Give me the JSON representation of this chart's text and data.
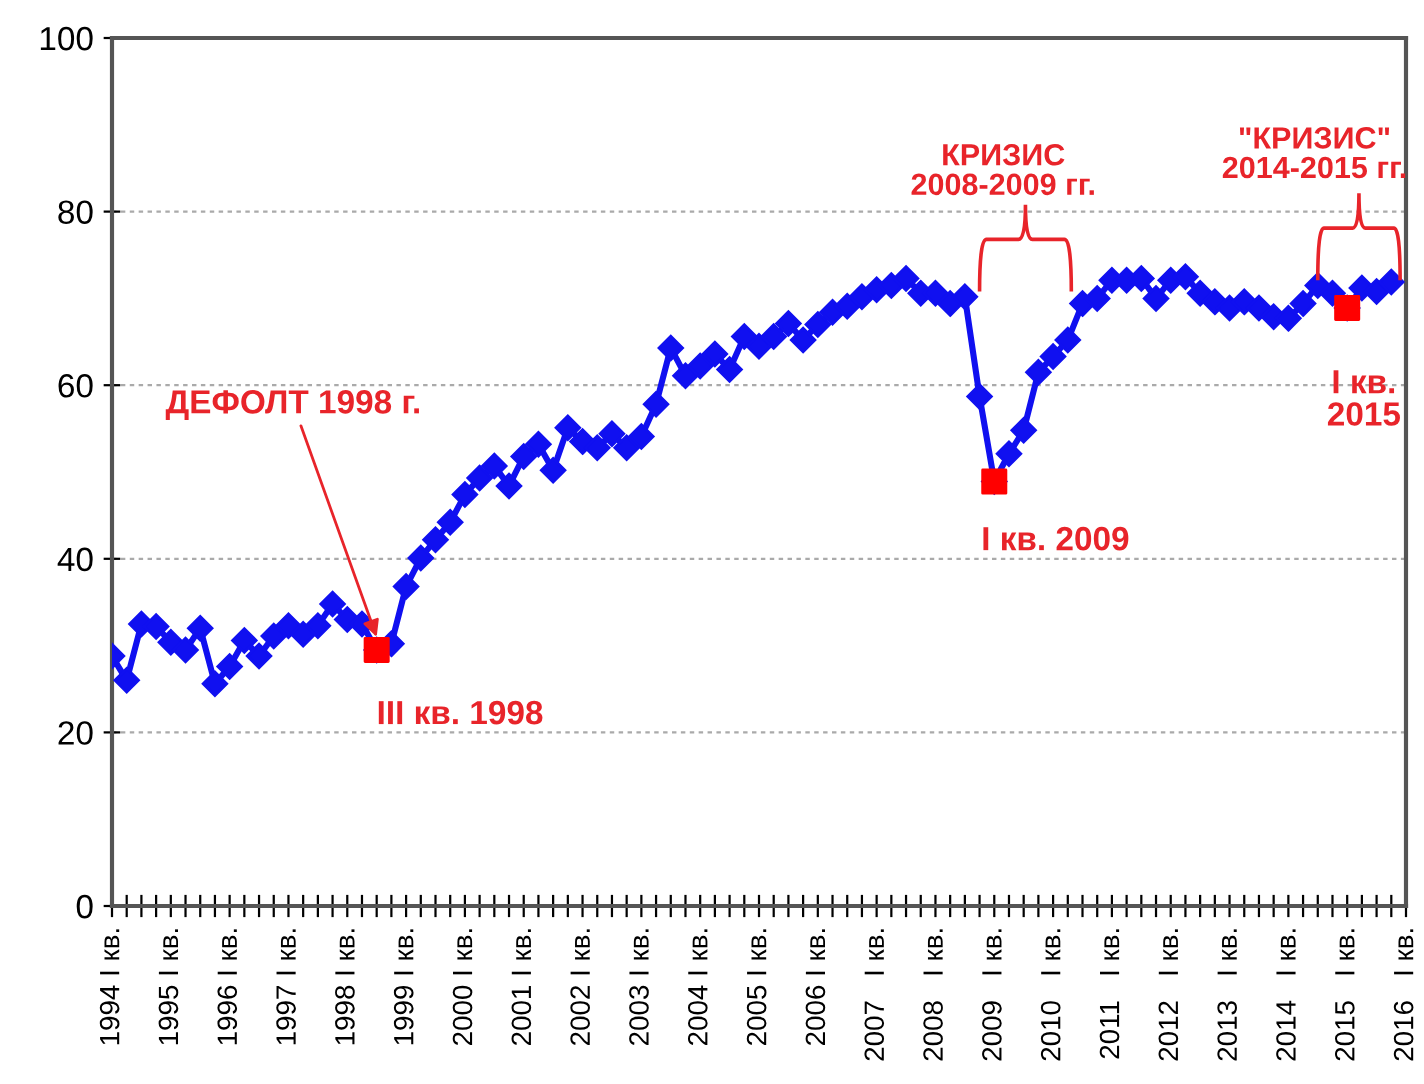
{
  "chart_data": {
    "type": "line",
    "xlim": [
      1994,
      2016
    ],
    "ylim": [
      0,
      100
    ],
    "yticks": [
      0,
      20,
      40,
      60,
      80,
      100
    ],
    "xticks": [
      {
        "value": 1994,
        "label": "1994 I кв."
      },
      {
        "value": 1994.25,
        "label": null
      },
      {
        "value": 1994.5,
        "label": null
      },
      {
        "value": 1994.75,
        "label": null
      },
      {
        "value": 1995,
        "label": "1995 I кв."
      },
      {
        "value": 1995.25,
        "label": null
      },
      {
        "value": 1995.5,
        "label": null
      },
      {
        "value": 1995.75,
        "label": null
      },
      {
        "value": 1996,
        "label": "1996 I кв."
      },
      {
        "value": 1996.25,
        "label": null
      },
      {
        "value": 1996.5,
        "label": null
      },
      {
        "value": 1996.75,
        "label": null
      },
      {
        "value": 1997,
        "label": "1997 I кв."
      },
      {
        "value": 1997.25,
        "label": null
      },
      {
        "value": 1997.5,
        "label": null
      },
      {
        "value": 1997.75,
        "label": null
      },
      {
        "value": 1998,
        "label": "1998 I кв."
      },
      {
        "value": 1998.25,
        "label": null
      },
      {
        "value": 1998.5,
        "label": null
      },
      {
        "value": 1998.75,
        "label": null
      },
      {
        "value": 1999,
        "label": "1999 I кв."
      },
      {
        "value": 1999.25,
        "label": null
      },
      {
        "value": 1999.5,
        "label": null
      },
      {
        "value": 1999.75,
        "label": null
      },
      {
        "value": 2000,
        "label": "2000 I кв."
      },
      {
        "value": 2000.25,
        "label": null
      },
      {
        "value": 2000.5,
        "label": null
      },
      {
        "value": 2000.75,
        "label": null
      },
      {
        "value": 2001,
        "label": "2001 I кв."
      },
      {
        "value": 2001.25,
        "label": null
      },
      {
        "value": 2001.5,
        "label": null
      },
      {
        "value": 2001.75,
        "label": null
      },
      {
        "value": 2002,
        "label": "2002 I кв."
      },
      {
        "value": 2002.25,
        "label": null
      },
      {
        "value": 2002.5,
        "label": null
      },
      {
        "value": 2002.75,
        "label": null
      },
      {
        "value": 2003,
        "label": "2003 I кв."
      },
      {
        "value": 2003.25,
        "label": null
      },
      {
        "value": 2003.5,
        "label": null
      },
      {
        "value": 2003.75,
        "label": null
      },
      {
        "value": 2004,
        "label": "2004 I кв."
      },
      {
        "value": 2004.25,
        "label": null
      },
      {
        "value": 2004.5,
        "label": null
      },
      {
        "value": 2004.75,
        "label": null
      },
      {
        "value": 2005,
        "label": "2005 I кв."
      },
      {
        "value": 2005.25,
        "label": null
      },
      {
        "value": 2005.5,
        "label": null
      },
      {
        "value": 2005.75,
        "label": null
      },
      {
        "value": 2006,
        "label": "2006 I кв."
      },
      {
        "value": 2006.25,
        "label": null
      },
      {
        "value": 2006.5,
        "label": null
      },
      {
        "value": 2006.75,
        "label": null
      },
      {
        "value": 2007,
        "label": "2007   I кв."
      },
      {
        "value": 2007.25,
        "label": null
      },
      {
        "value": 2007.5,
        "label": null
      },
      {
        "value": 2007.75,
        "label": null
      },
      {
        "value": 2008,
        "label": "2008   I кв."
      },
      {
        "value": 2008.25,
        "label": null
      },
      {
        "value": 2008.5,
        "label": null
      },
      {
        "value": 2008.75,
        "label": null
      },
      {
        "value": 2009,
        "label": "2009   I кв."
      },
      {
        "value": 2009.25,
        "label": null
      },
      {
        "value": 2009.5,
        "label": null
      },
      {
        "value": 2009.75,
        "label": null
      },
      {
        "value": 2010,
        "label": "2010   I кв."
      },
      {
        "value": 2010.25,
        "label": null
      },
      {
        "value": 2010.5,
        "label": null
      },
      {
        "value": 2010.75,
        "label": null
      },
      {
        "value": 2011,
        "label": "2011   I кв."
      },
      {
        "value": 2011.25,
        "label": null
      },
      {
        "value": 2011.5,
        "label": null
      },
      {
        "value": 2011.75,
        "label": null
      },
      {
        "value": 2012,
        "label": "2012   I кв."
      },
      {
        "value": 2012.25,
        "label": null
      },
      {
        "value": 2012.5,
        "label": null
      },
      {
        "value": 2012.75,
        "label": null
      },
      {
        "value": 2013,
        "label": "2013   I кв."
      },
      {
        "value": 2013.25,
        "label": null
      },
      {
        "value": 2013.5,
        "label": null
      },
      {
        "value": 2013.75,
        "label": null
      },
      {
        "value": 2014,
        "label": "2014   I кв."
      },
      {
        "value": 2014.25,
        "label": null
      },
      {
        "value": 2014.5,
        "label": null
      },
      {
        "value": 2014.75,
        "label": null
      },
      {
        "value": 2015,
        "label": "2015   I кв."
      },
      {
        "value": 2015.25,
        "label": null
      },
      {
        "value": 2015.5,
        "label": null
      },
      {
        "value": 2015.75,
        "label": null
      },
      {
        "value": 2016,
        "label": "2016   I кв."
      }
    ],
    "grid": "y",
    "series": [
      {
        "color": "#1010f0",
        "marker": "diamond",
        "x": [
          1994,
          1994.25,
          1994.5,
          1994.75,
          1995,
          1995.25,
          1995.5,
          1995.75,
          1996,
          1996.25,
          1996.5,
          1996.75,
          1997,
          1997.25,
          1997.5,
          1997.75,
          1998,
          1998.25,
          1998.5,
          1998.75,
          1999,
          1999.25,
          1999.5,
          1999.75,
          2000,
          2000.25,
          2000.5,
          2000.75,
          2001,
          2001.25,
          2001.5,
          2001.75,
          2002,
          2002.25,
          2002.5,
          2002.75,
          2003,
          2003.25,
          2003.5,
          2003.75,
          2004,
          2004.25,
          2004.5,
          2004.75,
          2005,
          2005.25,
          2005.5,
          2005.75,
          2006,
          2006.25,
          2006.5,
          2006.75,
          2007,
          2007.25,
          2007.5,
          2007.75,
          2008,
          2008.25,
          2008.5,
          2008.75,
          2009,
          2009.25,
          2009.5,
          2009.75,
          2010,
          2010.25,
          2010.5,
          2010.75,
          2011,
          2011.25,
          2011.5,
          2011.75,
          2012,
          2012.25,
          2012.5,
          2012.75,
          2013,
          2013.25,
          2013.5,
          2013.75,
          2014,
          2014.25,
          2014.5,
          2014.75,
          2015,
          2015.25,
          2015.5,
          2015.75
        ],
        "values": [
          28.8,
          26.0,
          32.5,
          32.2,
          30.4,
          29.5,
          32.0,
          25.6,
          27.6,
          30.6,
          28.8,
          31.1,
          32.3,
          31.3,
          32.3,
          34.8,
          33.0,
          32.5,
          29.5,
          30.2,
          36.8,
          40.1,
          42.2,
          44.2,
          47.4,
          49.3,
          50.7,
          48.4,
          51.8,
          53.2,
          50.2,
          55.1,
          53.5,
          52.8,
          54.4,
          52.8,
          54.1,
          57.8,
          64.3,
          61.1,
          62.2,
          63.6,
          61.8,
          65.6,
          64.5,
          65.6,
          67.1,
          65.2,
          67.0,
          68.4,
          69.1,
          70.2,
          71.0,
          71.5,
          72.3,
          70.6,
          70.6,
          69.4,
          70.2,
          58.7,
          48.9,
          52.1,
          54.8,
          61.5,
          63.3,
          65.2,
          69.4,
          70.0,
          72.1,
          72.1,
          72.3,
          70.0,
          72.1,
          72.5,
          70.6,
          69.6,
          68.9,
          69.6,
          68.9,
          67.9,
          67.7,
          69.4,
          71.5,
          70.6,
          68.9,
          71.2,
          70.8,
          71.9
        ]
      },
      {
        "type": "scatter",
        "color": "#ff0000",
        "marker": "square",
        "x": [
          1998.5,
          2009,
          2015
        ],
        "values": [
          29.5,
          48.9,
          68.9
        ]
      }
    ],
    "annotations": [
      {
        "text": "ДЕФОЛТ 1998 г.",
        "x": 1998.5,
        "y": 29.5
      },
      {
        "text": "III кв. 1998",
        "x": 1998.5,
        "y": 29.5
      },
      {
        "text": "КРИЗИС\n2008-2009 гг.",
        "x": 2008.75,
        "y": 70.2
      },
      {
        "text": "I кв. 2009",
        "x": 2009,
        "y": 48.9
      },
      {
        "text": "\"КРИЗИС\"\n2014-2015 гг.",
        "x": 2014.5,
        "y": 71.5
      },
      {
        "text": "I кв.\n2015",
        "x": 2015,
        "y": 68.9
      }
    ]
  }
}
